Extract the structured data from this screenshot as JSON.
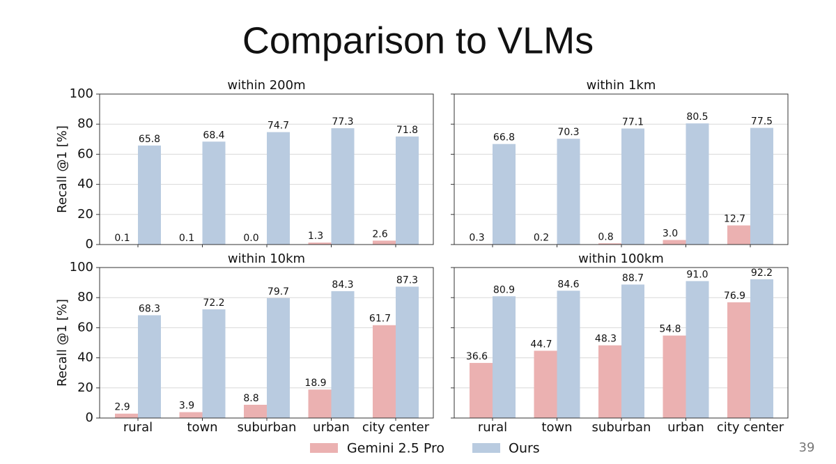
{
  "title": "Comparison to VLMs",
  "page_number": "39",
  "chart_data": [
    {
      "type": "bar",
      "title": "within 200m",
      "ylabel": "Recall @1 [%]",
      "ylim": [
        0,
        100
      ],
      "yticks": [
        0,
        20,
        40,
        60,
        80,
        100
      ],
      "grid": true,
      "series": [
        {
          "name": "Gemini 2.5 Pro",
          "color": "#ebb1b1",
          "values": [
            0.1,
            0.1,
            0.0,
            1.3,
            2.6
          ],
          "value_labels": [
            "0.1",
            "0.1",
            "0.0",
            "1.3",
            "2.6"
          ]
        },
        {
          "name": "Ours",
          "color": "#b9cbe0",
          "values": [
            65.8,
            68.4,
            74.7,
            77.3,
            71.8
          ],
          "value_labels": [
            "65.8",
            "68.4",
            "74.7",
            "77.3",
            "71.8"
          ]
        }
      ]
    },
    {
      "type": "bar",
      "title": "within 1km",
      "ylim": [
        0,
        100
      ],
      "yticks": [
        0,
        20,
        40,
        60,
        80,
        100
      ],
      "grid": true,
      "series": [
        {
          "name": "Gemini 2.5 Pro",
          "color": "#ebb1b1",
          "values": [
            0.3,
            0.2,
            0.8,
            3.0,
            12.7
          ],
          "value_labels": [
            "0.3",
            "0.2",
            "0.8",
            "3.0",
            "12.7"
          ]
        },
        {
          "name": "Ours",
          "color": "#b9cbe0",
          "values": [
            66.8,
            70.3,
            77.1,
            80.5,
            77.5
          ],
          "value_labels": [
            "66.8",
            "70.3",
            "77.1",
            "80.5",
            "77.5"
          ]
        }
      ]
    },
    {
      "type": "bar",
      "title": "within 10km",
      "ylabel": "Recall @1 [%]",
      "categories": [
        "rural",
        "town",
        "suburban",
        "urban",
        "city center"
      ],
      "ylim": [
        0,
        100
      ],
      "yticks": [
        0,
        20,
        40,
        60,
        80,
        100
      ],
      "grid": true,
      "series": [
        {
          "name": "Gemini 2.5 Pro",
          "color": "#ebb1b1",
          "values": [
            2.9,
            3.9,
            8.8,
            18.9,
            61.7
          ],
          "value_labels": [
            "2.9",
            "3.9",
            "8.8",
            "18.9",
            "61.7"
          ]
        },
        {
          "name": "Ours",
          "color": "#b9cbe0",
          "values": [
            68.3,
            72.2,
            79.7,
            84.3,
            87.3
          ],
          "value_labels": [
            "68.3",
            "72.2",
            "79.7",
            "84.3",
            "87.3"
          ]
        }
      ]
    },
    {
      "type": "bar",
      "title": "within 100km",
      "categories": [
        "rural",
        "town",
        "suburban",
        "urban",
        "city center"
      ],
      "ylim": [
        0,
        100
      ],
      "yticks": [
        0,
        20,
        40,
        60,
        80,
        100
      ],
      "grid": true,
      "series": [
        {
          "name": "Gemini 2.5 Pro",
          "color": "#ebb1b1",
          "values": [
            36.6,
            44.7,
            48.3,
            54.8,
            76.9
          ],
          "value_labels": [
            "36.6",
            "44.7",
            "48.3",
            "54.8",
            "76.9"
          ]
        },
        {
          "name": "Ours",
          "color": "#b9cbe0",
          "values": [
            80.9,
            84.6,
            88.7,
            91.0,
            92.2
          ],
          "value_labels": [
            "80.9",
            "84.6",
            "88.7",
            "91.0",
            "92.2"
          ]
        }
      ]
    }
  ]
}
